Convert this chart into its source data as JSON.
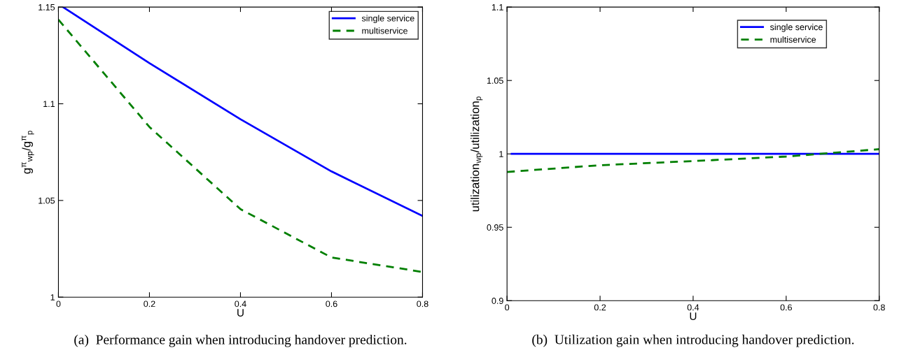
{
  "chart_data": [
    {
      "type": "line",
      "xlabel": "U",
      "ylabel": "g$^{π}$$_{wp}$/g$^{π}$$_{p}$",
      "xlim": [
        0,
        0.8
      ],
      "xticks": [
        0,
        0.2,
        0.4,
        0.6,
        0.8
      ],
      "ylim": [
        1,
        1.15
      ],
      "yticks": [
        1,
        1.05,
        1.1,
        1.15
      ],
      "grid": false,
      "legend": "top right",
      "series": [
        {
          "name": "single service",
          "color": "#0000ff",
          "line_style": "solid",
          "x": [
            0.01,
            0.2,
            0.4,
            0.6,
            0.8
          ],
          "values": [
            1.15,
            1.121,
            1.092,
            1.065,
            1.042
          ]
        },
        {
          "name": "multiservice",
          "color": "#007f00",
          "line_style": "dashed",
          "x": [
            0,
            0.2,
            0.4,
            0.6,
            0.8
          ],
          "values": [
            1.1435,
            1.088,
            1.0455,
            1.0205,
            1.013
          ]
        }
      ],
      "annotations": [
        "(a)  Performance gain when introducing handover prediction."
      ]
    },
    {
      "type": "line",
      "xlabel": "U",
      "ylabel": "utilization$_{wp}$/utilization$_{p}$",
      "xlim": [
        0,
        0.8
      ],
      "xticks": [
        0,
        0.2,
        0.4,
        0.6,
        0.8
      ],
      "ylim": [
        0.9,
        1.1
      ],
      "yticks": [
        0.9,
        0.95,
        1,
        1.05,
        1.1
      ],
      "grid": false,
      "legend": "top right",
      "series": [
        {
          "name": "single service",
          "color": "#0000ff",
          "line_style": "solid",
          "x": [
            0.01,
            0.2,
            0.4,
            0.6,
            0.8
          ],
          "values": [
            1,
            1,
            1,
            1,
            1
          ]
        },
        {
          "name": "multiservice",
          "color": "#007f00",
          "line_style": "dashed",
          "x": [
            0,
            0.2,
            0.4,
            0.6,
            0.8
          ],
          "values": [
            0.9877,
            0.9923,
            0.9951,
            0.9982,
            1.0032
          ]
        }
      ],
      "annotations": [
        "(b)  Utilization gain when introducing handover prediction."
      ]
    }
  ]
}
